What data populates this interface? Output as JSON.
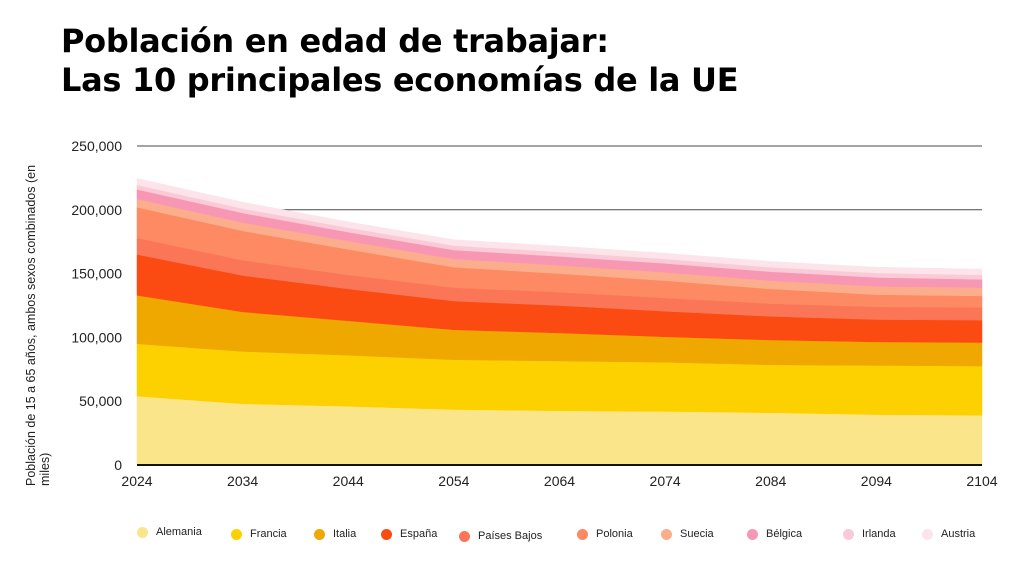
{
  "title_lines": [
    "Población en edad de trabajar:",
    "Las 10 principales economías de la UE"
  ],
  "chart_data": {
    "type": "area",
    "stacked": true,
    "title": "Población en edad de trabajar: Las 10 principales economías de la UE",
    "ylabel": "Población de 15 a 65 años, ambos sexos combinados (en miles)",
    "xlabel": "",
    "ylim": [
      0,
      250000
    ],
    "yticks": [
      0,
      50000,
      100000,
      150000,
      200000,
      250000
    ],
    "ytick_labels": [
      "0",
      "50,000",
      "100,000",
      "150,000",
      "200,000",
      "250,000"
    ],
    "x": [
      2024,
      2034,
      2044,
      2054,
      2064,
      2074,
      2084,
      2094,
      2104
    ],
    "xtick_labels": [
      "2024",
      "2034",
      "2044",
      "2054",
      "2064",
      "2074",
      "2084",
      "2094",
      "2104"
    ],
    "grid": true,
    "legend_position": "bottom",
    "series": [
      {
        "name": "Alemania",
        "color": "#fbe58b",
        "values": [
          54000,
          48000,
          46000,
          43500,
          42500,
          42000,
          41000,
          39500,
          39000
        ]
      },
      {
        "name": "Francia",
        "color": "#fdd100",
        "values": [
          41000,
          41000,
          40000,
          39000,
          39000,
          38500,
          37500,
          38500,
          38500
        ]
      },
      {
        "name": "Italia",
        "color": "#efa800",
        "values": [
          38000,
          31000,
          27000,
          23500,
          22000,
          20000,
          19500,
          18500,
          18500
        ]
      },
      {
        "name": "España",
        "color": "#fb4a12",
        "values": [
          32000,
          28500,
          25000,
          22500,
          21500,
          20000,
          18500,
          17500,
          17500
        ]
      },
      {
        "name": "Países Bajos",
        "color": "#fb7656",
        "values": [
          13000,
          12000,
          11000,
          10500,
          10500,
          10500,
          10000,
          10000,
          10000
        ]
      },
      {
        "name": "Polonia",
        "color": "#fd8a62",
        "values": [
          24000,
          23000,
          20000,
          16000,
          14500,
          13500,
          11500,
          9500,
          9000
        ]
      },
      {
        "name": "Suecia",
        "color": "#fcae8c",
        "values": [
          6500,
          6500,
          6500,
          6500,
          6500,
          6500,
          6500,
          6500,
          6500
        ]
      },
      {
        "name": "Bélgica",
        "color": "#f897b3",
        "values": [
          7500,
          7500,
          7000,
          7000,
          7000,
          7000,
          7000,
          7000,
          6500
        ]
      },
      {
        "name": "Irlanda",
        "color": "#fbcad7",
        "values": [
          3500,
          3500,
          3500,
          3500,
          3500,
          3500,
          3500,
          3500,
          3500
        ]
      },
      {
        "name": "Austria",
        "color": "#fde3ea",
        "values": [
          5000,
          5000,
          4500,
          4500,
          4500,
          4500,
          4500,
          4500,
          4500
        ]
      }
    ]
  }
}
